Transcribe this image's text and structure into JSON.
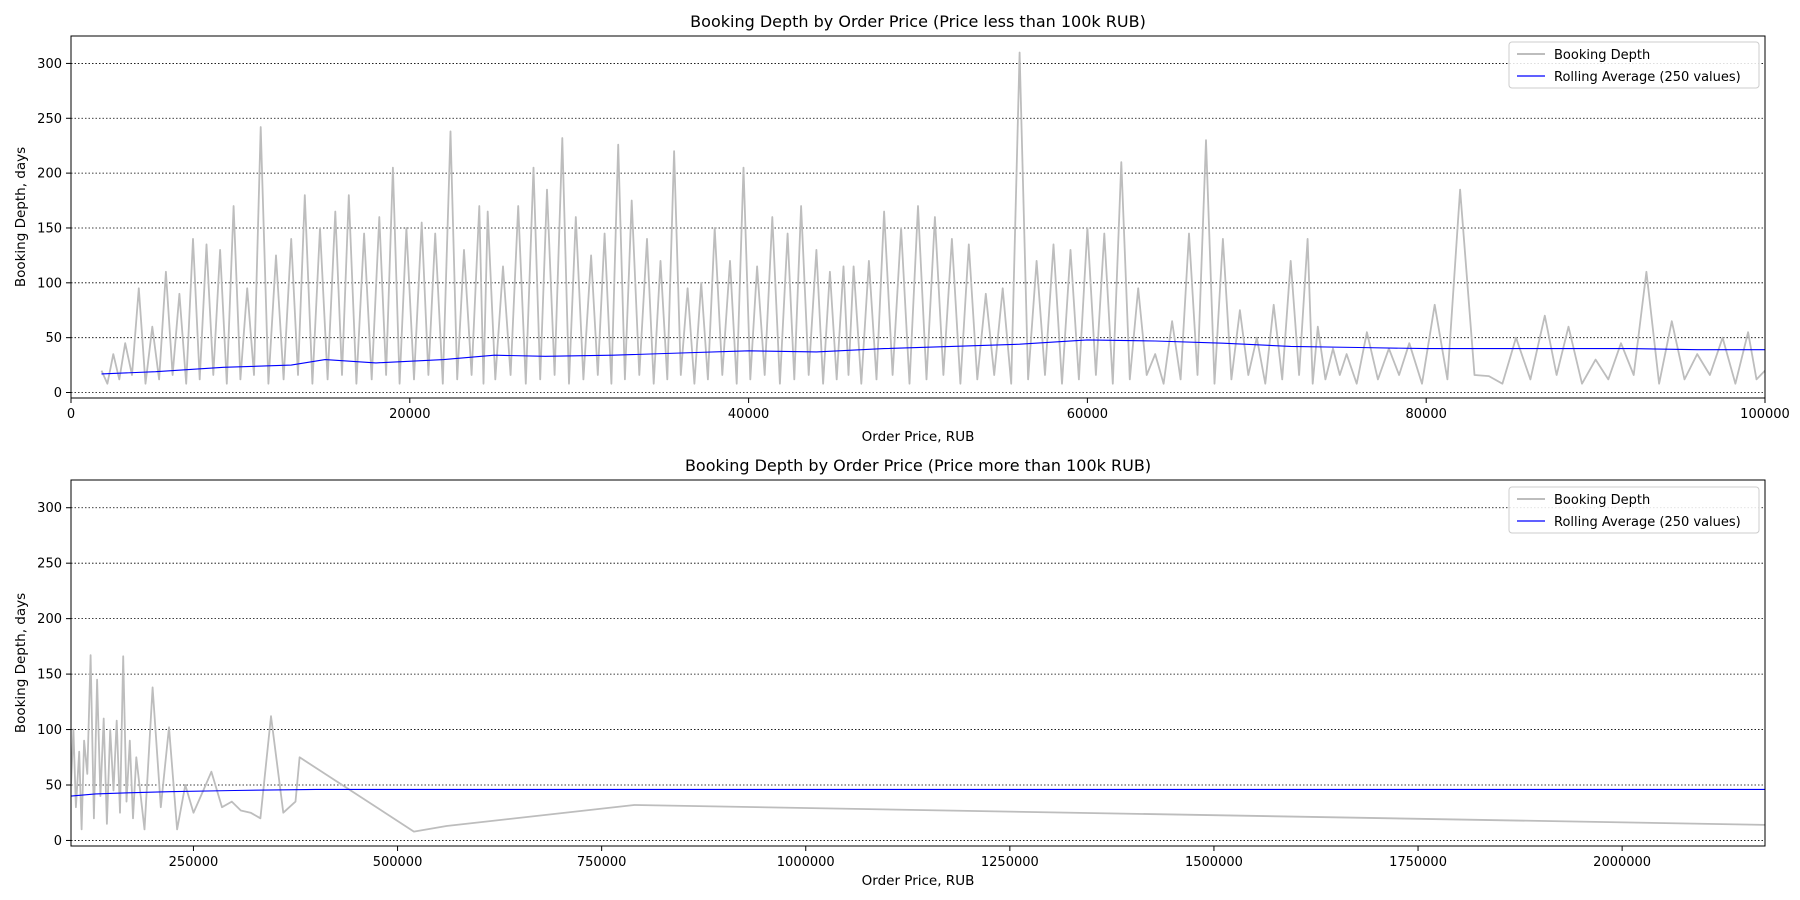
{
  "chart_data": [
    {
      "type": "line",
      "title": "Booking Depth by Order Price (Price less than 100k RUB)",
      "xlabel": "Order Price, RUB",
      "ylabel": "Booking Depth, days",
      "xlim": [
        0,
        100000
      ],
      "ylim": [
        -5,
        325
      ],
      "xticks": [
        0,
        20000,
        40000,
        60000,
        80000,
        100000
      ],
      "xtick_labels": [
        "0",
        "20000",
        "40000",
        "60000",
        "80000",
        "100000"
      ],
      "yticks": [
        0,
        50,
        100,
        150,
        200,
        250,
        300
      ],
      "ytick_labels": [
        "0",
        "50",
        "100",
        "150",
        "200",
        "250",
        "300"
      ],
      "grid": "y-dotted",
      "legend_position": "top-right",
      "series": [
        {
          "name": "Booking Depth",
          "color": "#bdbdbd",
          "x": [
            1800,
            2500,
            3200,
            4000,
            4800,
            5600,
            6400,
            7200,
            8000,
            8800,
            9600,
            10400,
            11200,
            12100,
            13000,
            13800,
            14700,
            15600,
            16400,
            17300,
            18200,
            19000,
            19800,
            20700,
            21500,
            22400,
            23200,
            24100,
            24600,
            25500,
            26400,
            27300,
            28100,
            29000,
            29800,
            30700,
            31500,
            32300,
            33100,
            34000,
            34800,
            35600,
            36400,
            37200,
            38000,
            38900,
            39700,
            40500,
            41400,
            42300,
            43100,
            44000,
            44800,
            45600,
            46200,
            47100,
            48000,
            49000,
            50000,
            51000,
            52000,
            53000,
            54000,
            55000,
            56000,
            57000,
            58000,
            59000,
            60000,
            61000,
            62000,
            63000,
            64000,
            65000,
            66000,
            67000,
            68000,
            69000,
            70000,
            71000,
            72000,
            73000,
            73600,
            74500,
            75300,
            76500,
            77800,
            79000,
            80500,
            82000,
            83700,
            85300,
            87000,
            88400,
            90000,
            91500,
            93000,
            94500,
            96000,
            97500,
            99000,
            100000
          ],
          "y": [
            20,
            35,
            45,
            95,
            60,
            110,
            90,
            140,
            135,
            130,
            170,
            95,
            242,
            125,
            140,
            180,
            150,
            165,
            180,
            145,
            160,
            205,
            150,
            155,
            145,
            238,
            130,
            170,
            165,
            115,
            170,
            205,
            185,
            232,
            160,
            125,
            145,
            226,
            175,
            140,
            120,
            220,
            95,
            100,
            150,
            120,
            205,
            115,
            160,
            145,
            170,
            130,
            110,
            115,
            115,
            120,
            165,
            150,
            170,
            160,
            140,
            135,
            90,
            95,
            310,
            120,
            135,
            130,
            150,
            145,
            210,
            95,
            35,
            65,
            145,
            230,
            140,
            75,
            50,
            80,
            120,
            140,
            60,
            40,
            35,
            55,
            40,
            45,
            80,
            185,
            15,
            50,
            70,
            60,
            30,
            45,
            110,
            65,
            35,
            50,
            55,
            20
          ],
          "y_note_low": 8
        },
        {
          "name": "Rolling Average (250 values)",
          "color": "#0000ff",
          "x": [
            1800,
            5000,
            9000,
            13000,
            15000,
            18000,
            22000,
            25000,
            28000,
            32000,
            36000,
            40000,
            44000,
            48000,
            52000,
            56000,
            60000,
            64000,
            68000,
            72000,
            76000,
            80000,
            84000,
            88000,
            92000,
            96000,
            100000
          ],
          "y": [
            17,
            19,
            23,
            25,
            30,
            27,
            30,
            34,
            33,
            34,
            36,
            38,
            37,
            40,
            42,
            44,
            48,
            47,
            45,
            42,
            41,
            40,
            40,
            40,
            40,
            39,
            39
          ]
        }
      ]
    },
    {
      "type": "line",
      "title": "Booking Depth by Order Price (Price more than 100k RUB)",
      "xlabel": "Order Price, RUB",
      "ylabel": "Booking Depth, days",
      "xlim": [
        100000,
        2175000
      ],
      "ylim": [
        -5,
        325
      ],
      "xticks": [
        250000,
        500000,
        750000,
        1000000,
        1250000,
        1500000,
        1750000,
        2000000
      ],
      "xtick_labels": [
        "250000",
        "500000",
        "750000",
        "1000000",
        "1250000",
        "1500000",
        "1750000",
        "2000000"
      ],
      "yticks": [
        0,
        50,
        100,
        150,
        200,
        250,
        300
      ],
      "ytick_labels": [
        "0",
        "50",
        "100",
        "150",
        "200",
        "250",
        "300"
      ],
      "grid": "y-dotted",
      "legend_position": "top-right",
      "series": [
        {
          "name": "Booking Depth",
          "color": "#bdbdbd",
          "x": [
            100000,
            103000,
            106000,
            110000,
            113000,
            116000,
            120000,
            124000,
            128000,
            132000,
            136000,
            140000,
            144000,
            148000,
            152000,
            156000,
            160000,
            164000,
            168000,
            172000,
            176000,
            180000,
            190000,
            200000,
            210000,
            220000,
            230000,
            240000,
            250000,
            262000,
            272000,
            285000,
            297000,
            308000,
            320000,
            332000,
            345000,
            360000,
            375000,
            380000,
            520000,
            560000,
            790000,
            2175000
          ],
          "y": [
            50,
            100,
            30,
            80,
            10,
            90,
            60,
            167,
            20,
            145,
            40,
            110,
            15,
            100,
            45,
            108,
            25,
            166,
            35,
            90,
            20,
            75,
            10,
            138,
            30,
            102,
            10,
            50,
            25,
            45,
            62,
            30,
            35,
            27,
            25,
            20,
            112,
            25,
            35,
            75,
            8,
            13,
            32,
            14
          ]
        },
        {
          "name": "Rolling Average (250 values)",
          "color": "#0000ff",
          "x": [
            100000,
            130000,
            170000,
            220000,
            300000,
            400000,
            600000,
            1000000,
            1500000,
            2175000
          ],
          "y": [
            40,
            42,
            43,
            44,
            45,
            46,
            46,
            46,
            46,
            46
          ]
        }
      ]
    }
  ]
}
